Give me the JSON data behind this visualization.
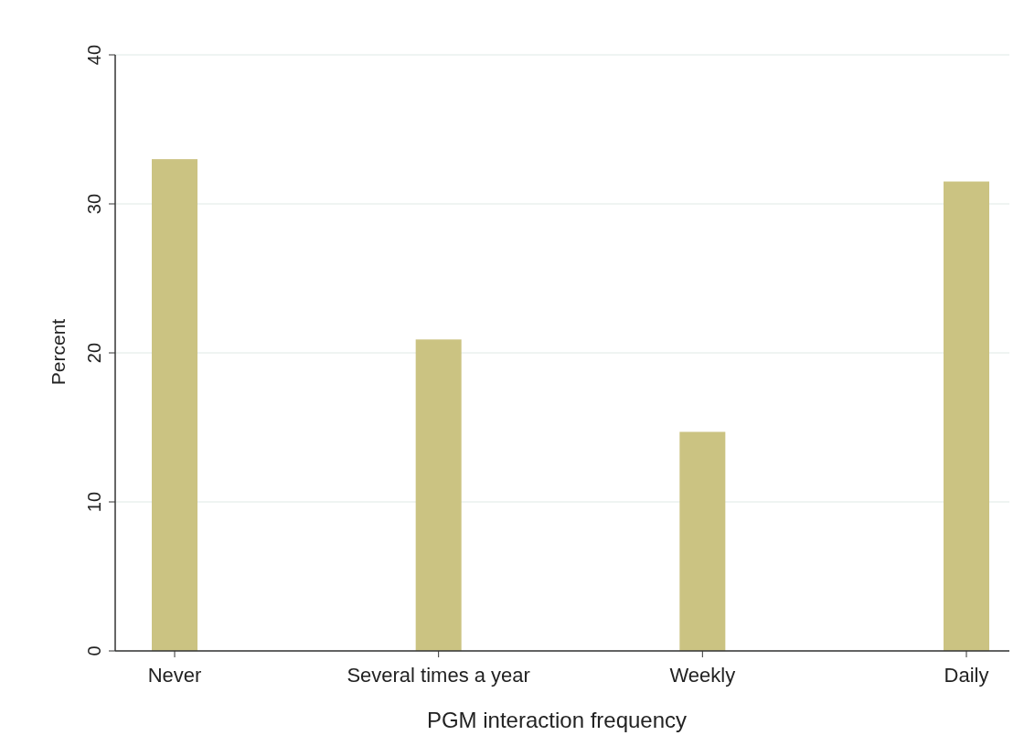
{
  "chart_data": {
    "type": "bar",
    "xlabel": "PGM interaction frequency",
    "ylabel": "Percent",
    "categories": [
      "Never",
      "Several times a year",
      "Weekly",
      "Daily"
    ],
    "values": [
      33.0,
      20.9,
      14.7,
      31.5
    ],
    "color": "#cbc382",
    "ylim": [
      0,
      40
    ],
    "yticks": [
      0,
      10,
      20,
      30,
      40
    ],
    "grid": "y"
  }
}
